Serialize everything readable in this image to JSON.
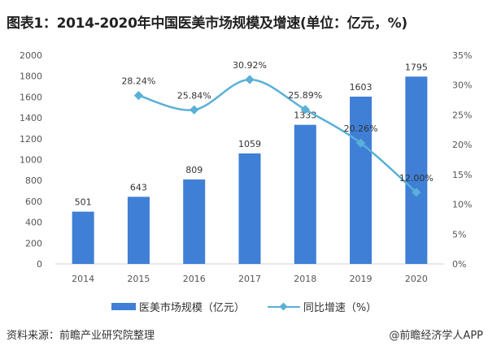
{
  "title": "图表1：2014-2020年中国医美市场规模及增速(单位：亿元，%)",
  "chart_data": {
    "type": "bar+line",
    "categories": [
      "2014",
      "2015",
      "2016",
      "2017",
      "2018",
      "2019",
      "2020"
    ],
    "series": [
      {
        "name": "医美市场规模（亿元）",
        "type": "bar",
        "axis": "left",
        "values": [
          501,
          643,
          809,
          1059,
          1333,
          1603,
          1795
        ],
        "labels": [
          "501",
          "643",
          "809",
          "1059",
          "1333",
          "1603",
          "1795"
        ],
        "color": "#3f7fd6"
      },
      {
        "name": "同比增速（%）",
        "type": "line",
        "axis": "right",
        "values": [
          null,
          28.24,
          25.84,
          30.92,
          25.89,
          20.26,
          12.0
        ],
        "labels": [
          "",
          "28.24%",
          "25.84%",
          "30.92%",
          "25.89%",
          "20.26%",
          "12.00%"
        ],
        "color": "#5ab0d8"
      }
    ],
    "left_axis": {
      "ylim": [
        0,
        2000
      ],
      "ticks": [
        "0",
        "200",
        "400",
        "600",
        "800",
        "1000",
        "1200",
        "1400",
        "1600",
        "1800",
        "2000"
      ]
    },
    "right_axis": {
      "ylim": [
        0,
        35
      ],
      "ticks": [
        "0%",
        "5%",
        "10%",
        "15%",
        "20%",
        "25%",
        "30%",
        "35%"
      ]
    },
    "legend_position": "bottom"
  },
  "footer": {
    "source": "资料来源：前瞻产业研究院整理",
    "credit": "@前瞻经济学人APP"
  }
}
